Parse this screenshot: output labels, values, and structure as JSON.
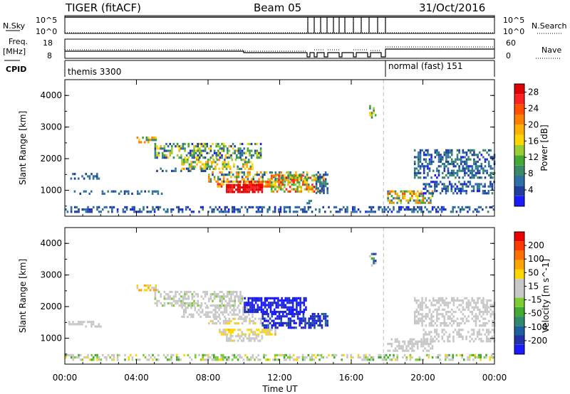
{
  "header": {
    "radar": "TIGER (fitACF)",
    "beam": "Beam 05",
    "date": "31/Oct/2016"
  },
  "status_panels": {
    "nsky_label": "N.Sky",
    "nsearch_label": "N.Search",
    "nsky_ticks": [
      "10^5",
      "10^0"
    ],
    "nsearch_ticks": [
      "10^5",
      "10^0"
    ],
    "freq_label": "Freq.",
    "freq_unit": "[MHz]",
    "freq_ticks": [
      "18",
      "8"
    ],
    "nave_label": "Nave",
    "nave_ticks": [
      "60",
      "0"
    ],
    "cpid_label": "CPID",
    "cpid_programs": [
      {
        "name": "themis 3300",
        "start_hour": 0,
        "end_hour": 17.8
      },
      {
        "name": "normal (fast) 151",
        "start_hour": 17.8,
        "end_hour": 24
      }
    ]
  },
  "colors": {
    "power_scale": [
      "#1a1aff",
      "#1f3f9f",
      "#2e6fa8",
      "#3a8a6a",
      "#44aa33",
      "#9acd32",
      "#ffd700",
      "#ffb000",
      "#ff8000",
      "#ff5000",
      "#ff2020",
      "#e00000"
    ],
    "velocity_scale": [
      "#1a1aff",
      "#2233aa",
      "#1f5f9f",
      "#2e8a6a",
      "#44aa33",
      "#7ccd32",
      "#c8c8c8",
      "#c8c8c8",
      "#ffd700",
      "#ffa500",
      "#ff7000",
      "#ff3a00",
      "#ee0000"
    ],
    "dashed_line": "#bbbbbb"
  },
  "chart_data": [
    {
      "type": "heatmap",
      "panel": "power",
      "ylabel": "Slant Range [km]",
      "xlabel": "Time UT",
      "x_ticks": [
        "00:00",
        "04:00",
        "08:00",
        "12:00",
        "16:00",
        "20:00",
        "00:00"
      ],
      "xlim_hours": [
        0,
        24
      ],
      "y_ticks": [
        "1000",
        "2000",
        "3000",
        "4000"
      ],
      "ylim_km": [
        180,
        4500
      ],
      "colorbar": {
        "label": "Power [dB]",
        "ticks": [
          "4",
          "8",
          "12",
          "16",
          "20",
          "24",
          "28"
        ],
        "range": [
          0,
          30
        ]
      },
      "marker_line_hour": 17.8,
      "echo_regions": [
        {
          "t0": 0.0,
          "t1": 24.0,
          "r0": 300,
          "r1": 500,
          "value": 5,
          "spread": 3,
          "density": 0.45
        },
        {
          "t0": 0.2,
          "t1": 2.0,
          "r0": 1350,
          "r1": 1550,
          "value": 6,
          "spread": 2,
          "density": 0.35
        },
        {
          "t0": 0.5,
          "t1": 5.5,
          "r0": 900,
          "r1": 1000,
          "value": 6,
          "spread": 2,
          "density": 0.3
        },
        {
          "t0": 4.0,
          "t1": 5.2,
          "r0": 2500,
          "r1": 2700,
          "value": 16,
          "spread": 8,
          "density": 0.4
        },
        {
          "t0": 5.0,
          "t1": 11.0,
          "r0": 2000,
          "r1": 2500,
          "value": 10,
          "spread": 8,
          "density": 0.55
        },
        {
          "t0": 6.5,
          "t1": 10.5,
          "r0": 1700,
          "r1": 2000,
          "value": 14,
          "spread": 8,
          "density": 0.5
        },
        {
          "t0": 5.0,
          "t1": 8.0,
          "r0": 1600,
          "r1": 1720,
          "value": 6,
          "spread": 3,
          "density": 0.35
        },
        {
          "t0": 8.0,
          "t1": 13.5,
          "r0": 1300,
          "r1": 1600,
          "value": 12,
          "spread": 10,
          "density": 0.55
        },
        {
          "t0": 8.5,
          "t1": 11.8,
          "r0": 1100,
          "r1": 1300,
          "value": 22,
          "spread": 6,
          "density": 0.65
        },
        {
          "t0": 9.0,
          "t1": 11.0,
          "r0": 950,
          "r1": 1200,
          "value": 28,
          "spread": 2,
          "density": 0.85
        },
        {
          "t0": 11.5,
          "t1": 14.5,
          "r0": 950,
          "r1": 1500,
          "value": 18,
          "spread": 10,
          "density": 0.6
        },
        {
          "t0": 14.0,
          "t1": 14.7,
          "r0": 900,
          "r1": 1600,
          "value": 6,
          "spread": 3,
          "density": 0.6
        },
        {
          "t0": 13.5,
          "t1": 14.0,
          "r0": 600,
          "r1": 700,
          "value": 6,
          "spread": 3,
          "density": 0.4
        },
        {
          "t0": 17.0,
          "t1": 17.4,
          "r0": 3300,
          "r1": 3700,
          "value": 12,
          "spread": 4,
          "density": 0.4
        },
        {
          "t0": 18.0,
          "t1": 20.5,
          "r0": 600,
          "r1": 1000,
          "value": 14,
          "spread": 10,
          "density": 0.55
        },
        {
          "t0": 19.5,
          "t1": 24.0,
          "r0": 1400,
          "r1": 2300,
          "value": 6,
          "spread": 4,
          "density": 0.5
        },
        {
          "t0": 20.0,
          "t1": 24.0,
          "r0": 900,
          "r1": 1300,
          "value": 5,
          "spread": 3,
          "density": 0.5
        }
      ]
    },
    {
      "type": "heatmap",
      "panel": "velocity",
      "ylabel": "Slant Range [km]",
      "xlabel": "Time UT",
      "x_ticks": [
        "00:00",
        "04:00",
        "08:00",
        "12:00",
        "16:00",
        "20:00",
        "00:00"
      ],
      "xlim_hours": [
        0,
        24
      ],
      "y_ticks": [
        "1000",
        "2000",
        "3000",
        "4000"
      ],
      "ylim_km": [
        180,
        4500
      ],
      "colorbar": {
        "label": "Velocity [m s^-1]",
        "ticks": [
          "200",
          "100",
          "50",
          "15",
          "-15",
          "-50",
          "-100",
          "-200"
        ],
        "range": [
          -250,
          250
        ]
      },
      "marker_line_hour": 17.8,
      "echo_regions": [
        {
          "t0": 0.0,
          "t1": 24.0,
          "r0": 300,
          "r1": 500,
          "value": 0,
          "spread": 80,
          "density": 0.45
        },
        {
          "t0": 0.2,
          "t1": 2.0,
          "r0": 1350,
          "r1": 1550,
          "value": 0,
          "spread": 10,
          "density": 0.35
        },
        {
          "t0": 4.0,
          "t1": 5.2,
          "r0": 2500,
          "r1": 2700,
          "value": -80,
          "spread": 40,
          "density": 0.4
        },
        {
          "t0": 5.0,
          "t1": 10.0,
          "r0": 2000,
          "r1": 2500,
          "value": 0,
          "spread": 30,
          "density": 0.55
        },
        {
          "t0": 6.5,
          "t1": 10.5,
          "r0": 1700,
          "r1": 2000,
          "value": 0,
          "spread": 20,
          "density": 0.5
        },
        {
          "t0": 8.0,
          "t1": 11.5,
          "r0": 1500,
          "r1": 1650,
          "value": -40,
          "spread": 30,
          "density": 0.5
        },
        {
          "t0": 10.0,
          "t1": 13.5,
          "r0": 1800,
          "r1": 2300,
          "value": 220,
          "spread": 20,
          "density": 0.75
        },
        {
          "t0": 11.0,
          "t1": 14.7,
          "r0": 1300,
          "r1": 1800,
          "value": 200,
          "spread": 40,
          "density": 0.65
        },
        {
          "t0": 8.5,
          "t1": 11.8,
          "r0": 1100,
          "r1": 1300,
          "value": -70,
          "spread": 30,
          "density": 0.6
        },
        {
          "t0": 9.0,
          "t1": 11.0,
          "r0": 950,
          "r1": 1100,
          "value": -40,
          "spread": 20,
          "density": 0.65
        },
        {
          "t0": 17.0,
          "t1": 17.4,
          "r0": 3300,
          "r1": 3700,
          "value": 90,
          "spread": 120,
          "density": 0.4
        },
        {
          "t0": 18.0,
          "t1": 20.5,
          "r0": 600,
          "r1": 1000,
          "value": 0,
          "spread": 10,
          "density": 0.55
        },
        {
          "t0": 19.5,
          "t1": 24.0,
          "r0": 1400,
          "r1": 2300,
          "value": 0,
          "spread": 15,
          "density": 0.5
        },
        {
          "t0": 20.0,
          "t1": 24.0,
          "r0": 900,
          "r1": 1300,
          "value": -20,
          "spread": 20,
          "density": 0.45
        }
      ]
    }
  ]
}
